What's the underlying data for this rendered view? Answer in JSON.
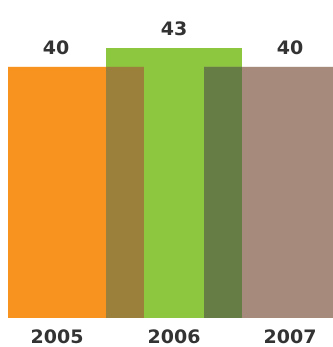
{
  "chart_data": {
    "type": "bar",
    "categories": [
      "2005",
      "2006",
      "2007"
    ],
    "values": [
      40,
      43,
      40
    ],
    "value_labels": [
      "40",
      "43",
      "40"
    ],
    "ylim": [
      0,
      43
    ],
    "grid": false,
    "legend": "none",
    "overlap": true,
    "colors": [
      "#F7931E",
      "#8DC63F",
      "#A68B7C"
    ],
    "overlap_colors": [
      "#9A803A",
      "#667D45"
    ]
  }
}
